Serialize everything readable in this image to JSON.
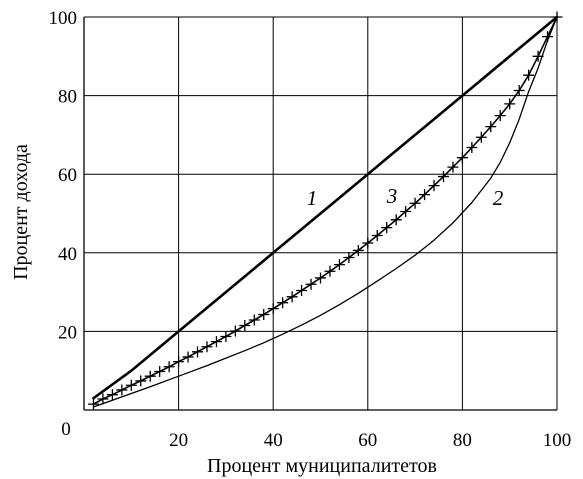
{
  "chart_data": {
    "type": "line",
    "xlabel": "Процент муниципалитетов",
    "ylabel": "Процент дохода",
    "xlim": [
      0,
      100
    ],
    "ylim": [
      0,
      100
    ],
    "origin_label": "0",
    "x_ticks": [
      "20",
      "40",
      "60",
      "80",
      "100"
    ],
    "y_ticks": [
      "20",
      "40",
      "60",
      "80",
      "100"
    ],
    "grid": true,
    "series": [
      {
        "name": "1",
        "style": "thick-line",
        "color": "#000000",
        "x": [
          2,
          10,
          20,
          30,
          40,
          50,
          60,
          70,
          80,
          90,
          100
        ],
        "y": [
          3,
          10,
          20,
          30,
          40,
          50,
          60,
          70,
          80,
          90,
          100
        ]
      },
      {
        "name": "3",
        "style": "line-with-crosses",
        "color": "#000000",
        "x": [
          2,
          4,
          6,
          8,
          10,
          12,
          14,
          16,
          18,
          20,
          22,
          24,
          26,
          28,
          30,
          32,
          34,
          36,
          38,
          40,
          42,
          44,
          46,
          48,
          50,
          52,
          54,
          56,
          58,
          60,
          62,
          64,
          66,
          68,
          70,
          72,
          74,
          76,
          78,
          80,
          82,
          84,
          86,
          88,
          90,
          92,
          94,
          96,
          98,
          100
        ],
        "y": [
          1.5,
          2.8,
          3.9,
          5.1,
          6.3,
          7.4,
          8.6,
          9.8,
          11,
          12.3,
          13.5,
          14.8,
          16.1,
          17.4,
          18.7,
          20.1,
          21.5,
          22.9,
          24.3,
          25.8,
          27.3,
          28.8,
          30.4,
          32,
          33.6,
          35.3,
          37,
          38.8,
          40.6,
          42.5,
          44.4,
          46.4,
          48.4,
          50.5,
          52.6,
          54.8,
          57.1,
          59.4,
          61.8,
          64.2,
          66.8,
          69.4,
          72.1,
          74.9,
          77.9,
          81.3,
          85.2,
          90,
          95,
          100
        ]
      },
      {
        "name": "2",
        "style": "thin-line",
        "color": "#000000",
        "x": [
          2,
          6,
          10,
          14,
          18,
          22,
          26,
          30,
          34,
          38,
          42,
          46,
          50,
          54,
          58,
          62,
          66,
          70,
          74,
          78,
          82,
          86,
          88,
          90,
          92,
          94,
          96,
          98,
          100
        ],
        "y": [
          0.8,
          2.5,
          4.2,
          5.9,
          7.7,
          9.5,
          11.3,
          13.2,
          15.1,
          17.1,
          19.3,
          21.6,
          24.1,
          26.8,
          29.7,
          32.8,
          36,
          39.4,
          43.2,
          47.6,
          52.8,
          59,
          63,
          68,
          74,
          81,
          87,
          94,
          100
        ]
      }
    ]
  }
}
